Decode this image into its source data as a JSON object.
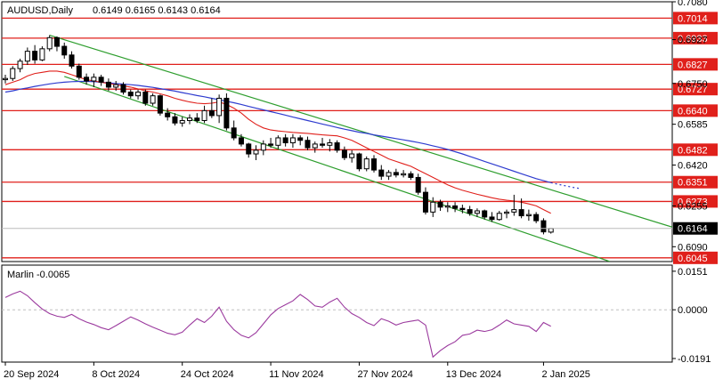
{
  "header": {
    "symbol": "AUDUSD,Daily",
    "ohlc": "0.6149 0.6165 0.6143 0.6164"
  },
  "indicator_label": "Marlin -0.0065",
  "colors": {
    "candle_up": "#ffffff",
    "candle_down": "#000000",
    "level_line": "#e0201b",
    "level_label_bg": "#e0201b",
    "channel": "#2e9e2e",
    "ma_fast": "#e0201b",
    "ma_slow": "#2f3ccf",
    "oscillator": "#9b3a9e",
    "current_price_bg": "#000000"
  },
  "chart_data": [
    {
      "type": "candlestick",
      "title": "",
      "price_axis": {
        "min": 0.603,
        "max": 0.708,
        "ticks": [
          0.708,
          0.6927,
          0.675,
          0.6585,
          0.642,
          0.6255,
          0.609
        ]
      },
      "x_ticks": [
        {
          "label": "20 Sep 2024",
          "bar": 0
        },
        {
          "label": "8 Oct 2024",
          "bar": 12
        },
        {
          "label": "24 Oct 2024",
          "bar": 24
        },
        {
          "label": "11 Nov 2024",
          "bar": 36
        },
        {
          "label": "27 Nov 2024",
          "bar": 48
        },
        {
          "label": "13 Dec 2024",
          "bar": 60
        },
        {
          "label": "2 Jan 2025",
          "bar": 73
        }
      ],
      "levels": [
        0.7014,
        0.6933,
        0.6827,
        0.6727,
        0.664,
        0.6482,
        0.6351,
        0.6273,
        0.6045
      ],
      "current_price": "0.6164",
      "channel": {
        "upper": [
          {
            "bar": 6,
            "price": 0.6945
          },
          {
            "bar": 92,
            "price": 0.6155
          }
        ],
        "lower": [
          {
            "bar": 8,
            "price": 0.6778
          },
          {
            "bar": 82,
            "price": 0.603
          }
        ]
      },
      "candles": [
        [
          0.6765,
          0.6785,
          0.675,
          0.677
        ],
        [
          0.677,
          0.682,
          0.676,
          0.681
        ],
        [
          0.681,
          0.685,
          0.6795,
          0.684
        ],
        [
          0.684,
          0.6895,
          0.6825,
          0.688
        ],
        [
          0.688,
          0.6905,
          0.683,
          0.6845
        ],
        [
          0.6845,
          0.69,
          0.684,
          0.689
        ],
        [
          0.689,
          0.6945,
          0.688,
          0.6935
        ],
        [
          0.6935,
          0.694,
          0.688,
          0.69
        ],
        [
          0.69,
          0.6915,
          0.685,
          0.6865
        ],
        [
          0.6865,
          0.688,
          0.681,
          0.682
        ],
        [
          0.682,
          0.683,
          0.6765,
          0.6775
        ],
        [
          0.6775,
          0.679,
          0.6745,
          0.676
        ],
        [
          0.676,
          0.679,
          0.6735,
          0.6775
        ],
        [
          0.6775,
          0.6785,
          0.674,
          0.6755
        ],
        [
          0.6755,
          0.677,
          0.672,
          0.6735
        ],
        [
          0.6735,
          0.676,
          0.672,
          0.6745
        ],
        [
          0.6745,
          0.6755,
          0.6705,
          0.6715
        ],
        [
          0.6715,
          0.6725,
          0.669,
          0.67
        ],
        [
          0.67,
          0.6725,
          0.6685,
          0.6715
        ],
        [
          0.6715,
          0.6725,
          0.666,
          0.667
        ],
        [
          0.667,
          0.671,
          0.666,
          0.67
        ],
        [
          0.67,
          0.6705,
          0.662,
          0.663
        ],
        [
          0.663,
          0.665,
          0.66,
          0.6615
        ],
        [
          0.6615,
          0.663,
          0.658,
          0.659
        ],
        [
          0.659,
          0.6615,
          0.6575,
          0.66
        ],
        [
          0.66,
          0.6625,
          0.6585,
          0.661
        ],
        [
          0.661,
          0.663,
          0.659,
          0.66
        ],
        [
          0.66,
          0.666,
          0.659,
          0.664
        ],
        [
          0.664,
          0.669,
          0.661,
          0.662
        ],
        [
          0.662,
          0.6705,
          0.659,
          0.669
        ],
        [
          0.669,
          0.671,
          0.656,
          0.657
        ],
        [
          0.657,
          0.66,
          0.652,
          0.653
        ],
        [
          0.653,
          0.6545,
          0.6495,
          0.6505
        ],
        [
          0.6505,
          0.651,
          0.645,
          0.6465
        ],
        [
          0.6465,
          0.65,
          0.644,
          0.648
        ],
        [
          0.648,
          0.652,
          0.646,
          0.6505
        ],
        [
          0.6505,
          0.653,
          0.649,
          0.65
        ],
        [
          0.65,
          0.654,
          0.6485,
          0.653
        ],
        [
          0.653,
          0.6545,
          0.6495,
          0.651
        ],
        [
          0.651,
          0.6545,
          0.649,
          0.653
        ],
        [
          0.653,
          0.654,
          0.65,
          0.652
        ],
        [
          0.652,
          0.6535,
          0.648,
          0.649
        ],
        [
          0.649,
          0.6515,
          0.647,
          0.6505
        ],
        [
          0.6505,
          0.653,
          0.649,
          0.65
        ],
        [
          0.65,
          0.6525,
          0.6475,
          0.651
        ],
        [
          0.651,
          0.652,
          0.647,
          0.648
        ],
        [
          0.648,
          0.6495,
          0.644,
          0.645
        ],
        [
          0.645,
          0.648,
          0.643,
          0.6465
        ],
        [
          0.6465,
          0.647,
          0.6395,
          0.6405
        ],
        [
          0.6405,
          0.6455,
          0.6395,
          0.6445
        ],
        [
          0.6445,
          0.646,
          0.639,
          0.64
        ],
        [
          0.64,
          0.642,
          0.636,
          0.6375
        ],
        [
          0.6375,
          0.64,
          0.636,
          0.639
        ],
        [
          0.639,
          0.6405,
          0.637,
          0.638
        ],
        [
          0.638,
          0.64,
          0.637,
          0.6385
        ],
        [
          0.6385,
          0.6395,
          0.636,
          0.637
        ],
        [
          0.637,
          0.6385,
          0.63,
          0.631
        ],
        [
          0.631,
          0.633,
          0.622,
          0.623
        ],
        [
          0.623,
          0.629,
          0.621,
          0.627
        ],
        [
          0.627,
          0.628,
          0.6235,
          0.625
        ],
        [
          0.625,
          0.627,
          0.623,
          0.6255
        ],
        [
          0.6255,
          0.627,
          0.623,
          0.6245
        ],
        [
          0.6245,
          0.626,
          0.6225,
          0.624
        ],
        [
          0.624,
          0.6255,
          0.6215,
          0.6225
        ],
        [
          0.6225,
          0.6245,
          0.621,
          0.6235
        ],
        [
          0.6235,
          0.624,
          0.62,
          0.621
        ],
        [
          0.621,
          0.623,
          0.619,
          0.62
        ],
        [
          0.62,
          0.6235,
          0.6195,
          0.6225
        ],
        [
          0.6225,
          0.624,
          0.6205,
          0.623
        ],
        [
          0.623,
          0.63,
          0.6215,
          0.624
        ],
        [
          0.624,
          0.6285,
          0.6205,
          0.6215
        ],
        [
          0.6215,
          0.624,
          0.6195,
          0.622
        ],
        [
          0.622,
          0.623,
          0.6185,
          0.6195
        ],
        [
          0.6195,
          0.6205,
          0.614,
          0.615
        ],
        [
          0.6149,
          0.6165,
          0.6143,
          0.6164
        ]
      ],
      "ma_fast": [
        0.6745,
        0.6755,
        0.6765,
        0.678,
        0.679,
        0.6795,
        0.68,
        0.68,
        0.6795,
        0.6785,
        0.6775,
        0.6765,
        0.676,
        0.6755,
        0.675,
        0.6745,
        0.674,
        0.6735,
        0.6728,
        0.672,
        0.6715,
        0.6708,
        0.67,
        0.669,
        0.6682,
        0.6675,
        0.667,
        0.6668,
        0.667,
        0.6675,
        0.6665,
        0.665,
        0.663,
        0.6605,
        0.6585,
        0.657,
        0.6562,
        0.6558,
        0.6555,
        0.6552,
        0.655,
        0.6548,
        0.6545,
        0.6542,
        0.654,
        0.6538,
        0.653,
        0.652,
        0.6505,
        0.649,
        0.6475,
        0.646,
        0.6445,
        0.6435,
        0.6425,
        0.6415,
        0.64,
        0.6385,
        0.637,
        0.6355,
        0.634,
        0.6328,
        0.6318,
        0.631,
        0.6302,
        0.6295,
        0.6288,
        0.6282,
        0.6278,
        0.6275,
        0.627,
        0.6263,
        0.6255,
        0.624,
        0.6225
      ],
      "ma_slow": [
        0.6715,
        0.672,
        0.6727,
        0.6732,
        0.6738,
        0.6743,
        0.6748,
        0.6752,
        0.6755,
        0.6757,
        0.6758,
        0.6758,
        0.6757,
        0.6755,
        0.6752,
        0.675,
        0.6747,
        0.6745,
        0.6742,
        0.6738,
        0.6734,
        0.6729,
        0.6724,
        0.6719,
        0.6713,
        0.6707,
        0.6701,
        0.6696,
        0.669,
        0.6684,
        0.6678,
        0.6672,
        0.6665,
        0.6657,
        0.665,
        0.6643,
        0.6636,
        0.6629,
        0.6622,
        0.6614,
        0.6607,
        0.66,
        0.6593,
        0.6586,
        0.6579,
        0.6572,
        0.6565,
        0.6559,
        0.6553,
        0.6548,
        0.6542,
        0.6537,
        0.6532,
        0.6527,
        0.6522,
        0.6517,
        0.6511,
        0.6505,
        0.6498,
        0.6491,
        0.6483,
        0.6474,
        0.6465,
        0.6455,
        0.6445,
        0.6435,
        0.6425,
        0.6415,
        0.6405,
        0.6395,
        0.6385,
        0.6375,
        0.6365,
        0.6357,
        0.6349
      ],
      "ma_slow_dotted": [
        0.6349,
        0.6342,
        0.6336,
        0.633,
        0.6325
      ]
    },
    {
      "type": "line",
      "name": "Marlin",
      "y_axis": {
        "min": -0.0205,
        "max": 0.0175,
        "ticks": [
          0.0151,
          0.0,
          -0.0191
        ]
      },
      "values": [
        0.0048,
        0.0062,
        0.0073,
        0.0055,
        0.0028,
        0.0003,
        -0.0015,
        -0.0025,
        -0.003,
        -0.0018,
        -0.0035,
        -0.0048,
        -0.0058,
        -0.007,
        -0.0078,
        -0.0062,
        -0.0045,
        -0.0028,
        -0.004,
        -0.0055,
        -0.0068,
        -0.008,
        -0.0092,
        -0.0098,
        -0.0088,
        -0.006,
        -0.0035,
        -0.005,
        -0.0025,
        0.001,
        -0.0045,
        -0.0078,
        -0.01,
        -0.011,
        -0.009,
        -0.0055,
        -0.002,
        0.0005,
        0.002,
        0.0035,
        0.006,
        0.004,
        0.0015,
        0.001,
        0.003,
        0.0045,
        0.001,
        -0.0015,
        -0.003,
        -0.005,
        -0.0062,
        -0.0035,
        -0.0045,
        -0.006,
        -0.005,
        -0.0045,
        -0.004,
        -0.006,
        -0.0185,
        -0.016,
        -0.014,
        -0.0125,
        -0.01,
        -0.0095,
        -0.008,
        -0.0085,
        -0.0078,
        -0.006,
        -0.004,
        -0.0055,
        -0.006,
        -0.0065,
        -0.0085,
        -0.005,
        -0.0065
      ]
    }
  ]
}
